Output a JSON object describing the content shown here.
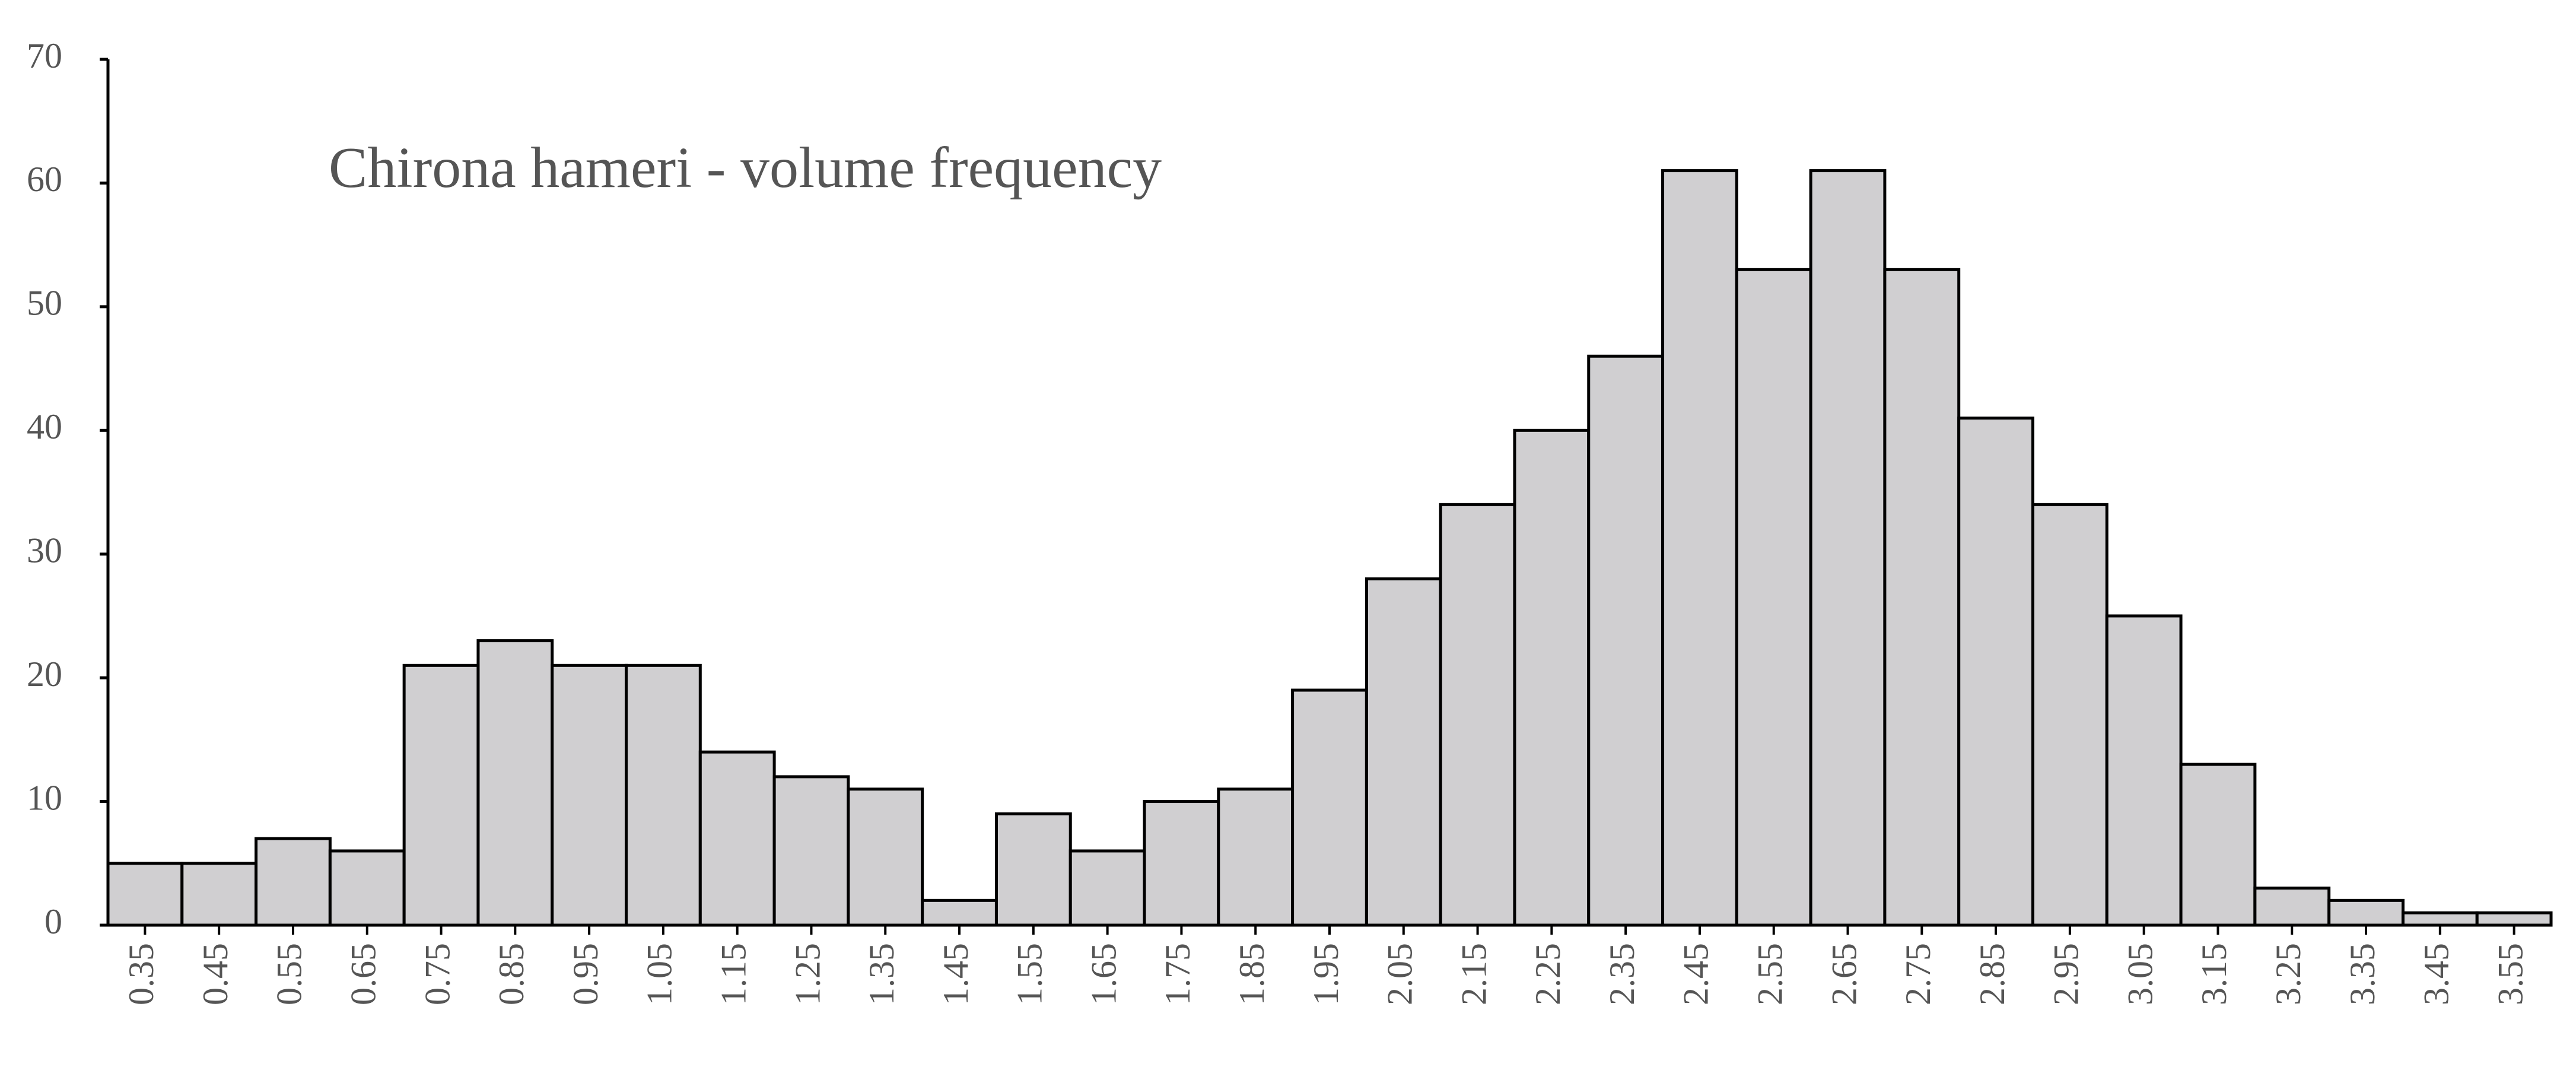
{
  "chart_data": {
    "type": "bar",
    "title": "Chirona hameri - volume frequency",
    "categories": [
      "0.35",
      "0.45",
      "0.55",
      "0.65",
      "0.75",
      "0.85",
      "0.95",
      "1.05",
      "1.15",
      "1.25",
      "1.35",
      "1.45",
      "1.55",
      "1.65",
      "1.75",
      "1.85",
      "1.95",
      "2.05",
      "2.15",
      "2.25",
      "2.35",
      "2.45",
      "2.55",
      "2.65",
      "2.75",
      "2.85",
      "2.95",
      "3.05",
      "3.15",
      "3.25",
      "3.35",
      "3.45",
      "3.55"
    ],
    "values": [
      5,
      5,
      7,
      6,
      21,
      23,
      21,
      21,
      14,
      12,
      11,
      2,
      9,
      6,
      10,
      11,
      19,
      28,
      34,
      40,
      46,
      61,
      53,
      61,
      53,
      41,
      34,
      25,
      13,
      3,
      2,
      1,
      1
    ],
    "color": "#d0cfd1",
    "ylim": [
      0,
      70
    ],
    "yticks": [
      0,
      10,
      20,
      30,
      40,
      50,
      60,
      70
    ],
    "grid": false
  }
}
